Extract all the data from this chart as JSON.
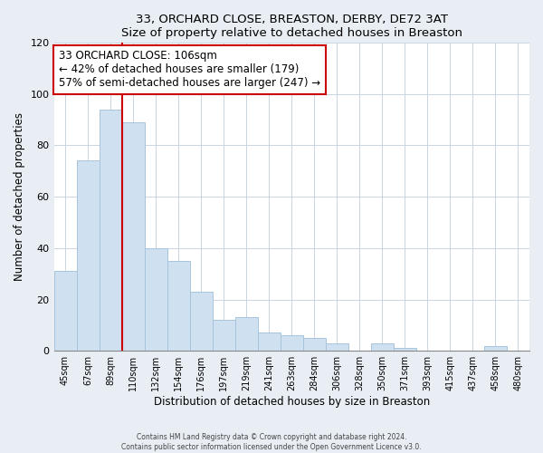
{
  "title": "33, ORCHARD CLOSE, BREASTON, DERBY, DE72 3AT",
  "subtitle": "Size of property relative to detached houses in Breaston",
  "xlabel": "Distribution of detached houses by size in Breaston",
  "ylabel": "Number of detached properties",
  "bin_labels": [
    "45sqm",
    "67sqm",
    "89sqm",
    "110sqm",
    "132sqm",
    "154sqm",
    "176sqm",
    "197sqm",
    "219sqm",
    "241sqm",
    "263sqm",
    "284sqm",
    "306sqm",
    "328sqm",
    "350sqm",
    "371sqm",
    "393sqm",
    "415sqm",
    "437sqm",
    "458sqm",
    "480sqm"
  ],
  "bar_heights": [
    31,
    74,
    94,
    89,
    40,
    35,
    23,
    12,
    13,
    7,
    6,
    5,
    3,
    0,
    3,
    1,
    0,
    0,
    0,
    2,
    0
  ],
  "bar_color": "#cfe0f0",
  "bar_edgecolor": "#a8c4dc",
  "vline_index": 2.5,
  "vline_color": "#cc0000",
  "annotation_title": "33 ORCHARD CLOSE: 106sqm",
  "annotation_line1": "← 42% of detached houses are smaller (179)",
  "annotation_line2": "57% of semi-detached houses are larger (247) →",
  "annotation_box_edgecolor": "#cc0000",
  "ylim": [
    0,
    120
  ],
  "yticks": [
    0,
    20,
    40,
    60,
    80,
    100,
    120
  ],
  "footer_line1": "Contains HM Land Registry data © Crown copyright and database right 2024.",
  "footer_line2": "Contains public sector information licensed under the Open Government Licence v3.0.",
  "background_color": "#e8eef4",
  "plot_background": "#ffffff"
}
